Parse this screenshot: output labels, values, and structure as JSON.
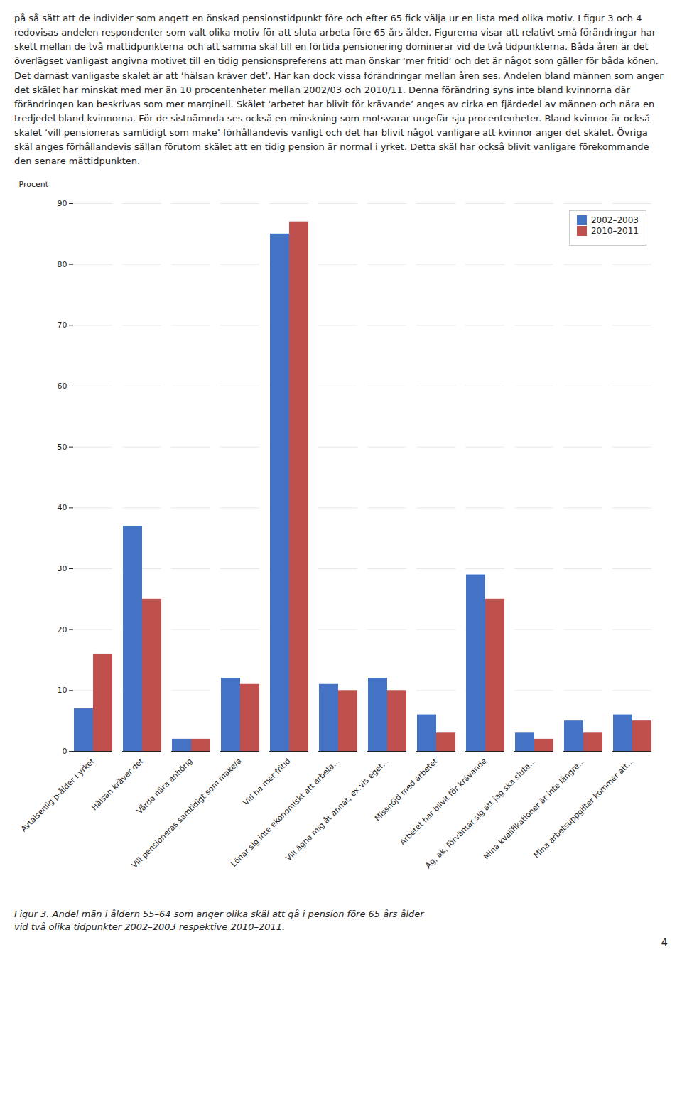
{
  "chart_data": {
    "type": "bar",
    "annotations": [
      "på så sätt att de individer som angett en önskad pensionstidpunkt före och efter 65 fick välja ur en lista med olika motiv. I figur 3 och 4 redovisas andelen respondenter som valt olika motiv för att sluta arbeta före 65 års ålder. Figurerna visar att relativt små förändringar har skett mellan de två mättidpunkterna och att samma skäl till en förtida pensionering dominerar vid de två tidpunkterna. Båda åren är det överlägset vanligast angivna motivet till en tidig pensionspreferens att man önskar ‘mer fritid’ och det är något som gäller för båda könen. Det därnäst vanligaste skälet är att ‘hälsan kräver det’. Här kan dock vissa förändringar mellan åren ses. Andelen bland männen som anger det skälet har minskat med mer än 10 procentenheter mellan 2002/03 och 2010/11. Denna förändring syns inte bland kvinnorna där förändringen kan beskrivas som mer marginell. Skälet ‘arbetet har blivit för krävande’ anges av cirka en fjärdedel av männen och nära en tredjedel bland kvinnorna. För de sistnämnda ses också en minskning som motsvarar ungefär sju procentenheter. Bland kvinnor är också skälet ‘vill pensioneras samtidigt som make’ förhållandevis vanligt och det har blivit något vanligare att kvinnor anger det skälet. Övriga skäl anges förhållandevis sällan förutom skälet att en tidig pension är normal i yrket. Detta skäl har också blivit vanligare förekommande den senare mättidpunkten.",
      "Figur 3. Andel män i åldern 55–64 som anger olika skäl att gå i pension före 65 års ålder\nvid två olika tidpunkter 2002–2003 respektive 2010–2011.",
      "4"
    ],
    "ylabel": "Procent",
    "categories": [
      "Avtalsenlig p-ålder i yrket",
      "Hälsan kräver det",
      "Vårda nära anhörig",
      "Vill pensioneras samtidigt som make/a",
      "Vill ha mer fritid",
      "Lönar sig inte ekonomiskt att arbeta...",
      "Vill ägna mig åt annat, ex.vis eget...",
      "Missnöjd med arbetet",
      "Arbetet har blivit för krävande",
      "Ag, ak, förväntar sig att jag ska sluta...",
      "Mina kvalifikationer är inte längre...",
      "Mina arbetsuppgifter kommer att..."
    ],
    "series": [
      {
        "name": "2002–2003",
        "color": "#4472C4",
        "values": [
          7,
          37,
          2,
          12,
          85,
          11,
          12,
          6,
          29,
          3,
          5,
          6
        ]
      },
      {
        "name": "2010–2011",
        "color": "#C0504D",
        "values": [
          16,
          25,
          2,
          11,
          87,
          10,
          10,
          3,
          25,
          2,
          3,
          5
        ]
      }
    ],
    "ylim": [
      0,
      90
    ],
    "yticks": [
      0,
      10,
      20,
      30,
      40,
      50,
      60,
      70,
      80,
      90
    ],
    "grid": true,
    "legend": "upper right"
  }
}
